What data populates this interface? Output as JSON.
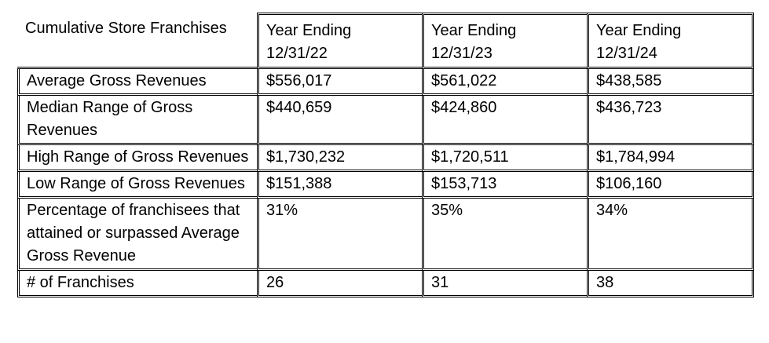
{
  "table": {
    "corner_label": "Cumulative Store Franchises",
    "columns": [
      {
        "line1": "Year Ending",
        "line2": "12/31/22"
      },
      {
        "line1": "Year Ending",
        "line2": "12/31/23"
      },
      {
        "line1": "Year Ending",
        "line2": "12/31/24"
      }
    ],
    "rows": [
      {
        "label": "Average Gross Revenues",
        "values": [
          "$556,017",
          "$561,022",
          "$438,585"
        ]
      },
      {
        "label": "Median Range of Gross Revenues",
        "values": [
          "$440,659",
          "$424,860",
          "$436,723"
        ]
      },
      {
        "label": "High Range of Gross Revenues",
        "values": [
          "$1,730,232",
          "$1,720,511",
          "$1,784,994"
        ]
      },
      {
        "label": "Low Range of Gross Revenues",
        "values": [
          "$151,388",
          "$153,713",
          "$106,160"
        ]
      },
      {
        "label": "Percentage of franchisees that attained or surpassed Average Gross Revenue",
        "values": [
          "31%",
          "35%",
          "34%"
        ]
      },
      {
        "label": "# of Franchises",
        "values": [
          "26",
          "31",
          "38"
        ]
      }
    ]
  }
}
